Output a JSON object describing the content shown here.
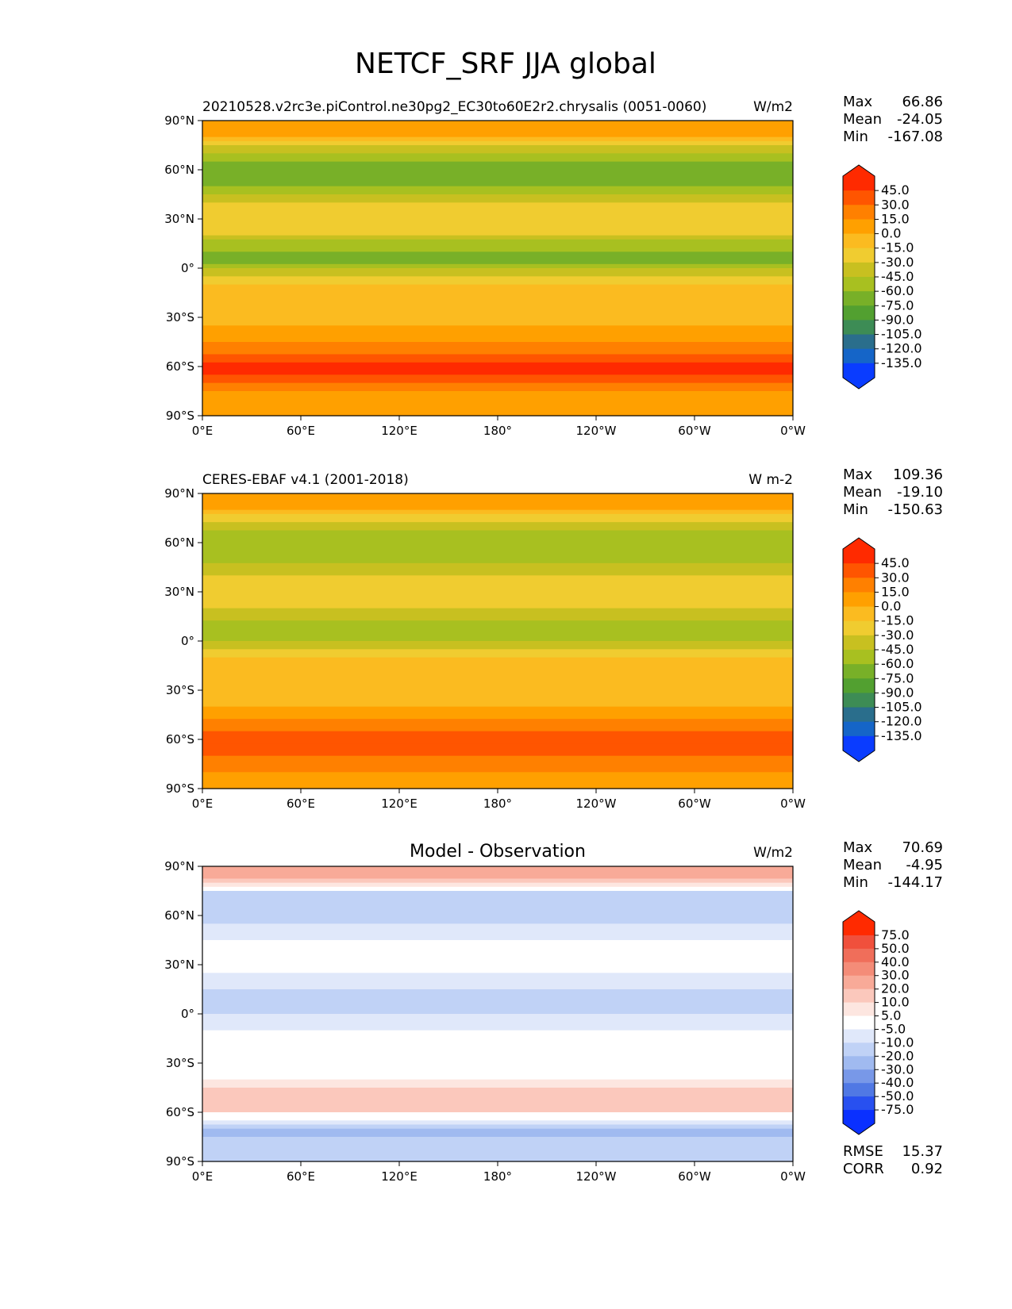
{
  "figure_title": "NETCF_SRF JJA global",
  "chart_data": [
    {
      "type": "heatmap",
      "title_left": "20210528.v2rc3e.piControl.ne30pg2_EC30to60E2r2.chrysalis (0051-0060)",
      "title_center": "",
      "units": "W/m2",
      "x_tick_labels": [
        "0°E",
        "60°E",
        "120°E",
        "180°",
        "120°W",
        "60°W",
        "0°W"
      ],
      "y_tick_labels": [
        "90°N",
        "60°N",
        "30°N",
        "0°",
        "30°S",
        "60°S",
        "90°S"
      ],
      "xlim": [
        0,
        360
      ],
      "ylim": [
        -90,
        90
      ],
      "stats": [
        {
          "label": "Max",
          "value": "66.86"
        },
        {
          "label": "Mean",
          "value": "-24.05"
        },
        {
          "label": "Min",
          "value": "-167.08"
        }
      ],
      "footer_stats": [],
      "colorbar": {
        "labels": [
          "45.0",
          "30.0",
          "15.0",
          "0.0",
          "-15.0",
          "-30.0",
          "-45.0",
          "-60.0",
          "-75.0",
          "-90.0",
          "-105.0",
          "-120.0",
          "-135.0"
        ],
        "colors": [
          "#ff2a00",
          "#ff5500",
          "#ff8000",
          "#ffa000",
          "#fbbb20",
          "#f0cc30",
          "#c8c020",
          "#a8c020",
          "#78b028",
          "#52a030",
          "#3d8c55",
          "#2a6e8c",
          "#1565c8",
          "#0a3cff"
        ],
        "extend_top": "#ff2a00",
        "extend_bottom": "#0a3cff"
      },
      "zonal_profile": [
        {
          "lat": 90,
          "value": 10
        },
        {
          "lat": 80,
          "value": 5
        },
        {
          "lat": 75,
          "value": -30
        },
        {
          "lat": 65,
          "value": -60
        },
        {
          "lat": 55,
          "value": -70
        },
        {
          "lat": 45,
          "value": -45
        },
        {
          "lat": 35,
          "value": -20
        },
        {
          "lat": 25,
          "value": -15
        },
        {
          "lat": 15,
          "value": -50
        },
        {
          "lat": 5,
          "value": -75
        },
        {
          "lat": 0,
          "value": -45
        },
        {
          "lat": -10,
          "value": -15
        },
        {
          "lat": -25,
          "value": -10
        },
        {
          "lat": -40,
          "value": 5
        },
        {
          "lat": -50,
          "value": 25
        },
        {
          "lat": -58,
          "value": 50
        },
        {
          "lat": -65,
          "value": 45
        },
        {
          "lat": -72,
          "value": 20
        },
        {
          "lat": -80,
          "value": 10
        },
        {
          "lat": -90,
          "value": 10
        }
      ]
    },
    {
      "type": "heatmap",
      "title_left": "CERES-EBAF v4.1 (2001-2018)",
      "title_center": "",
      "units": "W m-2",
      "x_tick_labels": [
        "0°E",
        "60°E",
        "120°E",
        "180°",
        "120°W",
        "60°W",
        "0°W"
      ],
      "y_tick_labels": [
        "90°N",
        "60°N",
        "30°N",
        "0°",
        "30°S",
        "60°S",
        "90°S"
      ],
      "xlim": [
        0,
        360
      ],
      "ylim": [
        -90,
        90
      ],
      "stats": [
        {
          "label": "Max",
          "value": "109.36"
        },
        {
          "label": "Mean",
          "value": "-19.10"
        },
        {
          "label": "Min",
          "value": "-150.63"
        }
      ],
      "footer_stats": [],
      "colorbar": {
        "labels": [
          "45.0",
          "30.0",
          "15.0",
          "0.0",
          "-15.0",
          "-30.0",
          "-45.0",
          "-60.0",
          "-75.0",
          "-90.0",
          "-105.0",
          "-120.0",
          "-135.0"
        ],
        "colors": [
          "#ff2a00",
          "#ff5500",
          "#ff8000",
          "#ffa000",
          "#fbbb20",
          "#f0cc30",
          "#c8c020",
          "#a8c020",
          "#78b028",
          "#52a030",
          "#3d8c55",
          "#2a6e8c",
          "#1565c8",
          "#0a3cff"
        ],
        "extend_top": "#ff2a00",
        "extend_bottom": "#0a3cff"
      },
      "zonal_profile": [
        {
          "lat": 90,
          "value": 15
        },
        {
          "lat": 80,
          "value": 5
        },
        {
          "lat": 75,
          "value": -25
        },
        {
          "lat": 65,
          "value": -50
        },
        {
          "lat": 55,
          "value": -60
        },
        {
          "lat": 45,
          "value": -40
        },
        {
          "lat": 35,
          "value": -20
        },
        {
          "lat": 25,
          "value": -15
        },
        {
          "lat": 15,
          "value": -40
        },
        {
          "lat": 5,
          "value": -60
        },
        {
          "lat": 0,
          "value": -40
        },
        {
          "lat": -10,
          "value": -15
        },
        {
          "lat": -25,
          "value": -10
        },
        {
          "lat": -40,
          "value": 0
        },
        {
          "lat": -50,
          "value": 20
        },
        {
          "lat": -58,
          "value": 40
        },
        {
          "lat": -65,
          "value": 40
        },
        {
          "lat": -72,
          "value": 25
        },
        {
          "lat": -80,
          "value": 15
        },
        {
          "lat": -90,
          "value": 10
        }
      ]
    },
    {
      "type": "heatmap",
      "title_left": "",
      "title_center": "Model - Observation",
      "units": "W/m2",
      "x_tick_labels": [
        "0°E",
        "60°E",
        "120°E",
        "180°",
        "120°W",
        "60°W",
        "0°W"
      ],
      "y_tick_labels": [
        "90°N",
        "60°N",
        "30°N",
        "0°",
        "30°S",
        "60°S",
        "90°S"
      ],
      "xlim": [
        0,
        360
      ],
      "ylim": [
        -90,
        90
      ],
      "stats": [
        {
          "label": "Max",
          "value": "70.69"
        },
        {
          "label": "Mean",
          "value": "-4.95"
        },
        {
          "label": "Min",
          "value": "-144.17"
        }
      ],
      "footer_stats": [
        {
          "label": "RMSE",
          "value": "15.37"
        },
        {
          "label": "CORR",
          "value": "0.92"
        }
      ],
      "colorbar": {
        "labels": [
          "75.0",
          "50.0",
          "40.0",
          "30.0",
          "20.0",
          "10.0",
          "5.0",
          "-5.0",
          "-10.0",
          "-20.0",
          "-30.0",
          "-40.0",
          "-50.0",
          "-75.0"
        ],
        "colors": [
          "#ff2a00",
          "#f0503c",
          "#f06e5a",
          "#f48c78",
          "#f8aa98",
          "#fbc8bc",
          "#fde6e0",
          "#ffffff",
          "#e0e8fa",
          "#c0d2f6",
          "#a0baf0",
          "#7898e8",
          "#5078e4",
          "#2850f0",
          "#0a30ff"
        ],
        "extend_top": "#ff2a00",
        "extend_bottom": "#0a30ff"
      },
      "zonal_profile": [
        {
          "lat": 90,
          "value": 25
        },
        {
          "lat": 82,
          "value": 20
        },
        {
          "lat": 75,
          "value": -10
        },
        {
          "lat": 65,
          "value": -15
        },
        {
          "lat": 55,
          "value": -10
        },
        {
          "lat": 45,
          "value": -5
        },
        {
          "lat": 35,
          "value": 0
        },
        {
          "lat": 25,
          "value": -5
        },
        {
          "lat": 15,
          "value": -10
        },
        {
          "lat": 5,
          "value": -15
        },
        {
          "lat": 0,
          "value": -10
        },
        {
          "lat": -10,
          "value": -5
        },
        {
          "lat": -25,
          "value": -3
        },
        {
          "lat": -40,
          "value": 5
        },
        {
          "lat": -50,
          "value": 15
        },
        {
          "lat": -58,
          "value": 12
        },
        {
          "lat": -65,
          "value": -5
        },
        {
          "lat": -72,
          "value": -25
        },
        {
          "lat": -80,
          "value": -15
        },
        {
          "lat": -90,
          "value": -10
        }
      ]
    }
  ]
}
